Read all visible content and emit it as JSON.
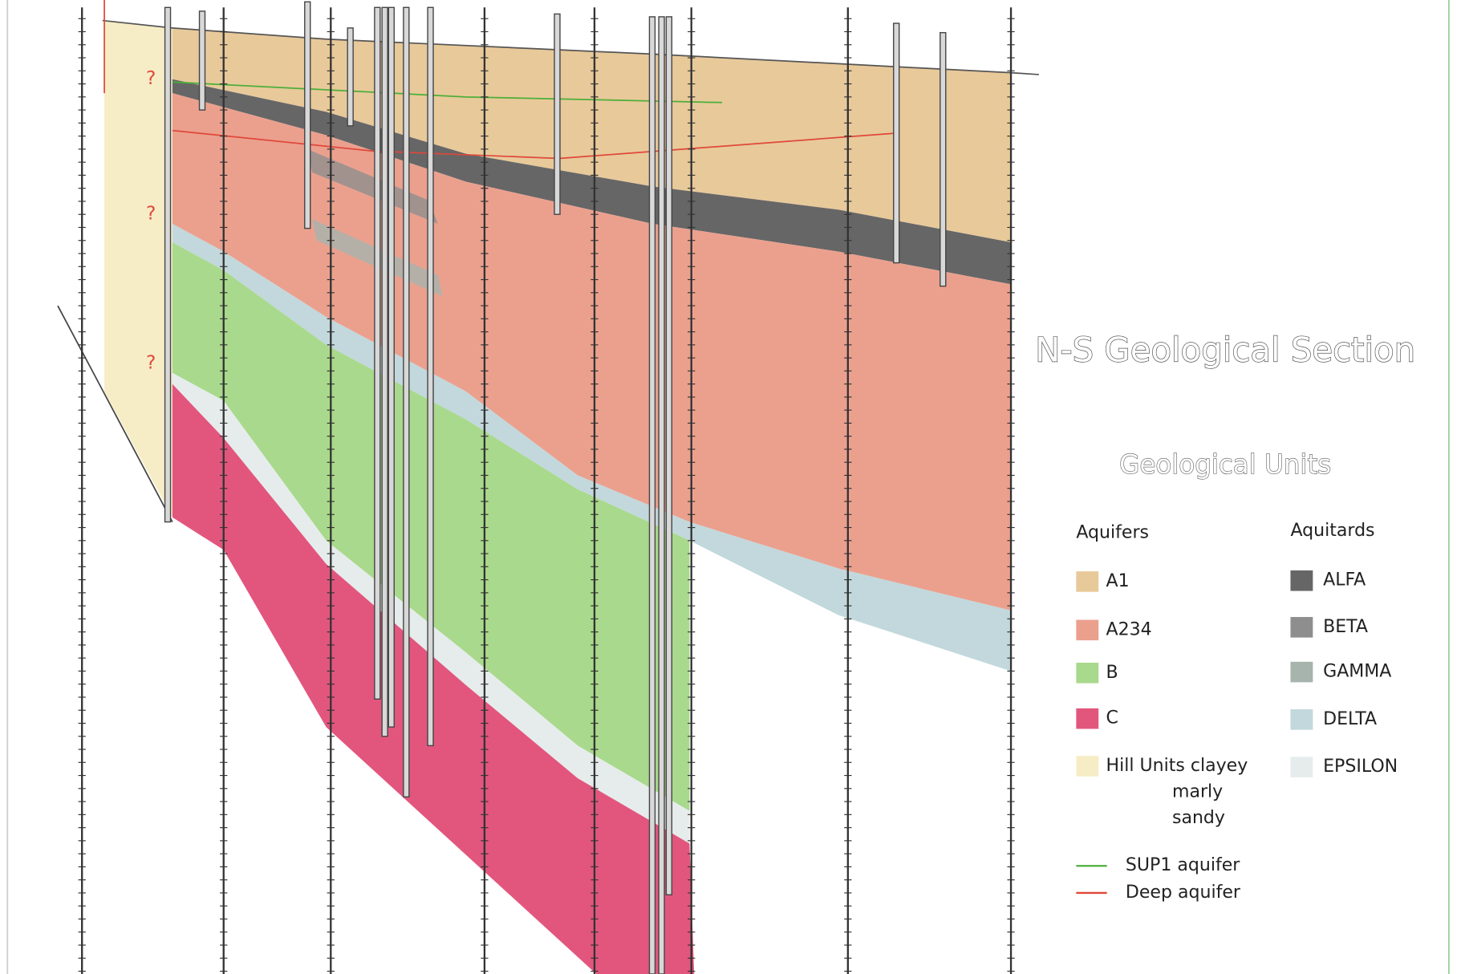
{
  "title": "N-S Geological Section",
  "section": {
    "question_marks": [
      "?",
      "?",
      "?"
    ]
  },
  "legend": {
    "title": "Geological Units",
    "aquifers": {
      "heading": "Aquifers",
      "items": [
        {
          "label": "A1",
          "color": "#e8c99a"
        },
        {
          "label": "A234",
          "color": "#eba08e"
        },
        {
          "label": "B",
          "color": "#a9d98c"
        },
        {
          "label": "C",
          "color": "#e2567e"
        }
      ]
    },
    "hill_units": {
      "lines": [
        "Hill Units clayey",
        "marly",
        "sandy"
      ],
      "color": "#f6edc6"
    },
    "aquitards": {
      "heading": "Aquitards",
      "items": [
        {
          "label": "ALFA",
          "color": "#666666"
        },
        {
          "label": "BETA",
          "color": "#8e8e8e"
        },
        {
          "label": "GAMMA",
          "color": "#a7b4ae"
        },
        {
          "label": "DELTA",
          "color": "#c2d8dc"
        },
        {
          "label": "EPSILON",
          "color": "#e6ecec"
        }
      ]
    },
    "lines": [
      {
        "label": "SUP1 aquifer",
        "color": "#4caf3a"
      },
      {
        "label": "Deep aquifer",
        "color": "#e0483a"
      }
    ]
  }
}
